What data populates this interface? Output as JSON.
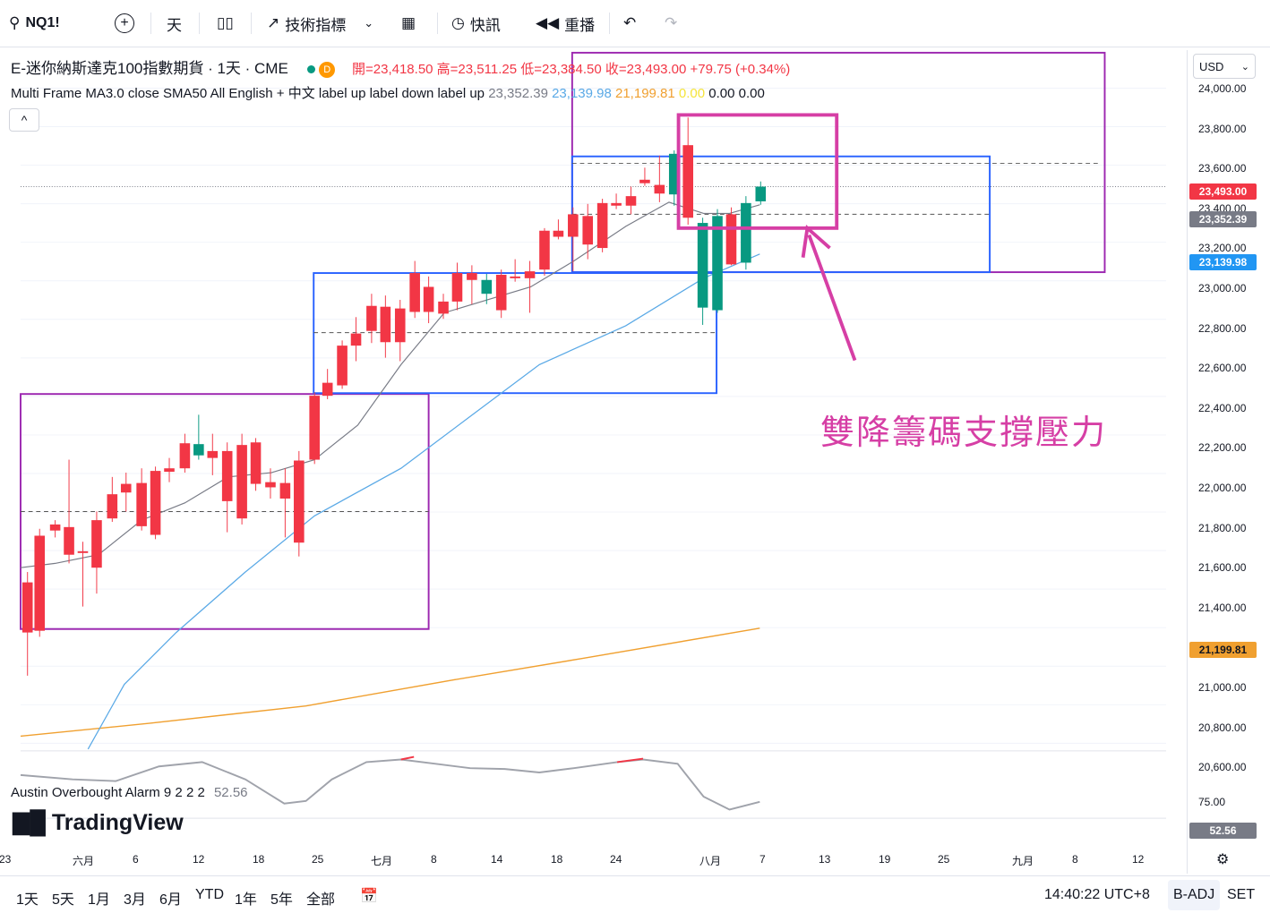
{
  "toolbar": {
    "symbol": "NQ1!",
    "interval": "天",
    "indicators": "技術指標",
    "alert": "快訊",
    "replay": "重播"
  },
  "legend": {
    "title": "E-迷你納斯達克100指數期貨 · 1天 · CME",
    "badge": "D",
    "ohlc": "開=23,418.50 高=23,511.25 低=23,384.50 收=23,493.00 +79.75 (+0.34%)",
    "ma_name": "Multi Frame MA3.0 close SMA50 All English + 中文 label up label down label up",
    "ma_v1": "23,352.39",
    "ma_v2": "23,139.98",
    "ma_v3": "21,199.81",
    "ma_v4": "0.00",
    "ma_v5": "0.00",
    "ma_v6": "0.00",
    "osc_name": "Austin Overbought Alarm 9 2 2 2",
    "osc_value": "52.56",
    "collapse": "^"
  },
  "currency": "USD",
  "price_ticks": [
    "24,000.00",
    "23,800.00",
    "23,600.00",
    "23,400.00",
    "23,200.00",
    "23,000.00",
    "22,800.00",
    "22,600.00",
    "22,400.00",
    "22,200.00",
    "22,000.00",
    "21,800.00",
    "21,600.00",
    "21,400.00",
    "21,200.00",
    "21,000.00",
    "20,800.00",
    "20,600.00"
  ],
  "osc_ticks": [
    "75.00",
    "52.56"
  ],
  "price_labels": {
    "last": "23,493.00",
    "ma1": "23,352.39",
    "ma2": "23,139.98",
    "ma3": "21,199.81"
  },
  "time_ticks": [
    "23",
    "六月",
    "6",
    "12",
    "18",
    "25",
    "七月",
    "8",
    "14",
    "18",
    "24",
    "八月",
    "7",
    "13",
    "19",
    "25",
    "九月",
    "8",
    "12"
  ],
  "annotation": "雙降籌碼支撐壓力",
  "logo": "TradingView",
  "bottom": {
    "ranges": [
      "1天",
      "5天",
      "1月",
      "3月",
      "6月",
      "YTD",
      "1年",
      "5年",
      "全部"
    ],
    "clock": "14:40:22 UTC+8",
    "badj": "B-ADJ",
    "set": "SET"
  },
  "colors": {
    "up": "#089981",
    "down": "#f23645",
    "ma_blue": "#5aa9e6",
    "ma_orange": "#f0a030",
    "box_purple": "#9c27b0",
    "box_blue": "#2962ff",
    "anno": "#d63fa5"
  }
}
